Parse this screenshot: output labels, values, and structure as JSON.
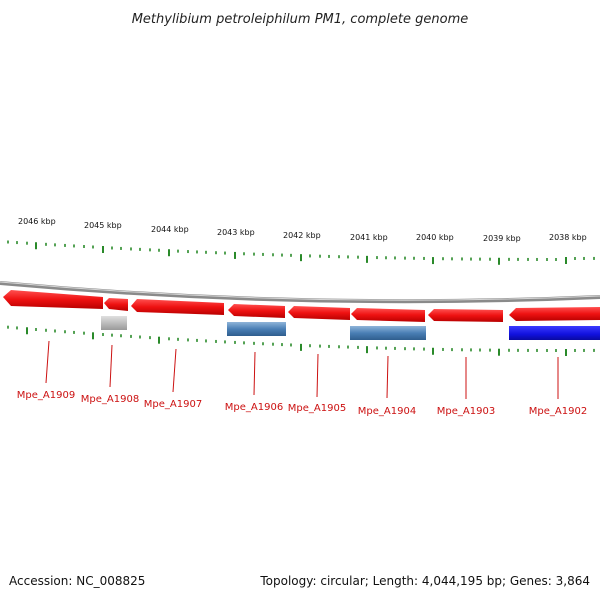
{
  "title": "Methylibium petroleiphilum PM1, complete genome",
  "footer": {
    "accession": "Accession: NC_008825",
    "topology": "Topology: circular; Length: 4,044,195 bp; Genes: 3,864"
  },
  "colors": {
    "forward_gene": "#ee1111",
    "rna_gene": "#4a7fb5",
    "pseudo_gene": "#b8b8b8",
    "highlight_gene": "#1111dd",
    "tick": "#2a8a2a",
    "backbone": "#8a8a8a",
    "label": "#cc1111"
  },
  "ticks": [
    "2046 kbp",
    "2045 kbp",
    "2044 kbp",
    "2043 kbp",
    "2042 kbp",
    "2041 kbp",
    "2040 kbp",
    "2039 kbp",
    "2038 kbp"
  ],
  "genes": [
    {
      "label": "Mpe_A1909",
      "strand": "reverse",
      "type": "cds"
    },
    {
      "label": "Mpe_A1908",
      "strand": "reverse",
      "type": "cds"
    },
    {
      "label": "Mpe_A1907",
      "strand": "reverse",
      "type": "cds"
    },
    {
      "label": "Mpe_A1906",
      "strand": "reverse",
      "type": "cds"
    },
    {
      "label": "Mpe_A1905",
      "strand": "reverse",
      "type": "cds"
    },
    {
      "label": "Mpe_A1904",
      "strand": "reverse",
      "type": "cds"
    },
    {
      "label": "Mpe_A1903",
      "strand": "reverse",
      "type": "cds"
    },
    {
      "label": "Mpe_A1902",
      "strand": "reverse",
      "type": "cds"
    }
  ]
}
